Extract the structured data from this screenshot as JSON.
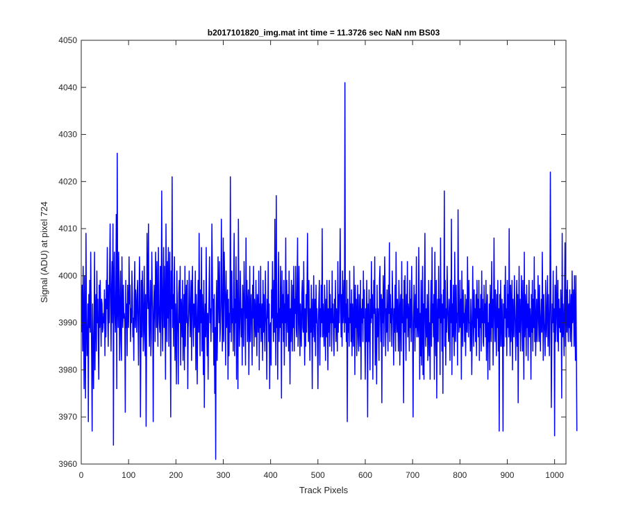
{
  "chart_data": {
    "type": "line",
    "title": "b2017101820_img.mat int time = 11.3726 sec  NaN nm BS03",
    "xlabel": "Track Pixels",
    "ylabel": "Signal (ADU) at pixel 724",
    "xlim": [
      0,
      1024
    ],
    "ylim": [
      3960,
      4050
    ],
    "xticks": [
      0,
      100,
      200,
      300,
      400,
      500,
      600,
      700,
      800,
      900,
      1000
    ],
    "yticks": [
      3960,
      3970,
      3980,
      3990,
      4000,
      4010,
      4020,
      4030,
      4040,
      4050
    ],
    "grid": false,
    "series": [
      {
        "color": "#0000ff",
        "x_start": 1,
        "x_step": 1,
        "values": [
          3988,
          3998,
          3984,
          4002,
          3990,
          3976,
          4000,
          3986,
          3974,
          4009,
          3991,
          3983,
          3985,
          3994,
          3969,
          3996,
          3989,
          3999,
          3988,
          4005,
          3993,
          3982,
          3967,
          3994,
          3985,
          3976,
          3987,
          4005,
          3980,
          3992,
          3996,
          3984,
          4001,
          3990,
          3995,
          3986,
          3978,
          3998,
          3989,
          3999,
          3992,
          3985,
          3995,
          3994,
          3988,
          3989,
          3992,
          3990,
          3997,
          3983,
          3995,
          3987,
          3999,
          3993,
          4006,
          3991,
          3985,
          3998,
          3990,
          4002,
          4011,
          3994,
          3984,
          3997,
          4003,
          3990,
          4011,
          3964,
          3999,
          4005,
          3992,
          3988,
          3996,
          4013,
          3976,
          4026,
          3994,
          3989,
          4005,
          3998,
          3982,
          3992,
          4001,
          3986,
          3982,
          4004,
          3993,
          3989,
          3998,
          3991,
          3992,
          3990,
          3971,
          3999,
          3989,
          3994,
          3983,
          3998,
          3993,
          3989,
          4004,
          3994,
          3998,
          3986,
          3993,
          3990,
          4001,
          3995,
          3987,
          3991,
          3982,
          3996,
          4003,
          3989,
          3997,
          3993,
          3988,
          3996,
          3999,
          3990,
          3981,
          3993,
          4004,
          3998,
          3970,
          3985,
          3999,
          3987,
          4001,
          3996,
          3984,
          3988,
          4002,
          3990,
          3983,
          3996,
          3968,
          3986,
          4009,
          3997,
          3993,
          4011,
          3990,
          3985,
          3994,
          3999,
          3983,
          3987,
          4005,
          3997,
          3992,
          3969,
          3990,
          3998,
          3994,
          3986,
          4005,
          3999,
          3989,
          4003,
          3991,
          3985,
          4006,
          3994,
          3990,
          3988,
          4002,
          3983,
          3996,
          4018,
          3991,
          3984,
          3997,
          4006,
          3989,
          4002,
          3992,
          3978,
          4011,
          3996,
          3986,
          4003,
          3991,
          4006,
          3985,
          3997,
          4005,
          3990,
          3970,
          4001,
          3993,
          4021,
          3989,
          3996,
          3985,
          3999,
          4004,
          3982,
          3994,
          3989,
          3977,
          4001,
          3993,
          3987,
          3977,
          3996,
          3999,
          3990,
          4002,
          3981,
          3995,
          3993,
          3987,
          3999,
          3982,
          3990,
          3996,
          3980,
          4002,
          3985,
          3994,
          3998,
          3990,
          3999,
          3976,
          3989,
          3992,
          4001,
          3995,
          3987,
          3991,
          3999,
          3982,
          3996,
          4002,
          3991,
          3985,
          3994,
          3989,
          3991,
          4001,
          3980,
          3996,
          3989,
          3977,
          3992,
          3999,
          3988,
          4009,
          3993,
          3983,
          3997,
          3990,
          4006,
          3984,
          3996,
          3990,
          3979,
          3999,
          3972,
          3990,
          3994,
          3987,
          4006,
          3991,
          3983,
          3992,
          3978,
          3989,
          3997,
          4004,
          3990,
          3993,
          3986,
          3993,
          4011,
          4001,
          3988,
          3995,
          3981,
          3996,
          3975,
          3989,
          3961,
          3993,
          3999,
          3982,
          3988,
          4004,
          3996,
          3990,
          4003,
          3986,
          3989,
          3994,
          4012,
          3998,
          3984,
          3990,
          4008,
          3986,
          4005,
          3999,
          3993,
          3981,
          4001,
          3989,
          3994,
          3997,
          3978,
          3995,
          3983,
          3992,
          3988,
          4021,
          3996,
          3986,
          4001,
          3990,
          3993,
          3984,
          3999,
          4009,
          3983,
          3995,
          3990,
          4004,
          3978,
          3999,
          3991,
          3976,
          4012,
          3996,
          3985,
          3990,
          4001,
          3994,
          3987,
          3993,
          3981,
          3998,
          3993,
          3985,
          4003,
          3996,
          3990,
          3981,
          4008,
          3991,
          3999,
          3986,
          3994,
          3997,
          3979,
          3990,
          4002,
          3986,
          3993,
          3996,
          3989,
          3981,
          3998,
          3991,
          4002,
          3985,
          3995,
          3992,
          3987,
          3999,
          3990,
          3983,
          3996,
          3993,
          3988,
          4001,
          3980,
          3994,
          3989,
          4002,
          3986,
          3991,
          3994,
          3982,
          3999,
          3988,
          3996,
          3990,
          3984,
          4001,
          3993,
          3989,
          3978,
          3995,
          3991,
          4003,
          3986,
          3994,
          3976,
          3989,
          3990,
          3981,
          3997,
          3991,
          4003,
          3993,
          3986,
          3999,
          3988,
          4012,
          3993,
          3981,
          4017,
          3989,
          3992,
          3978,
          3998,
          4005,
          3986,
          3993,
          3989,
          4002,
          3991,
          3974,
          4001,
          3990,
          3996,
          3986,
          3999,
          3981,
          3994,
          3990,
          4008,
          3985,
          3999,
          3993,
          3988,
          3996,
          3984,
          4001,
          3990,
          3977,
          3993,
          3986,
          3999,
          3991,
          3984,
          3998,
          3989,
          4002,
          3984,
          3995,
          3992,
          4002,
          3989,
          3987,
          3999,
          4008,
          3985,
          3990,
          4002,
          3991,
          3983,
          3994,
          3989,
          3985,
          3996,
          3999,
          3989,
          3988,
          4003,
          3990,
          3981,
          3993,
          3985,
          3996,
          3988,
          3998,
          4009,
          3992,
          3986,
          3999,
          3990,
          3982,
          3993,
          3988,
          3998,
          3990,
          3976,
          3995,
          3987,
          4000,
          3991,
          3986,
          3995,
          3983,
          3998,
          3990,
          3993,
          3987,
          3976,
          3990,
          3995,
          3999,
          3981,
          3993,
          3987,
          3998,
          3990,
          4010,
          3987,
          3994,
          3989,
          3985,
          3998,
          3992,
          3982,
          3995,
          3987,
          3999,
          3991,
          3980,
          3993,
          3988,
          3999,
          3985,
          3996,
          3990,
          3993,
          3984,
          4001,
          3990,
          3994,
          3987,
          3983,
          3995,
          3989,
          3999,
          3986,
          3993,
          3991,
          3984,
          4003,
          3988,
          3996,
          3990,
          3999,
          4010,
          3993,
          3987,
          3996,
          3985,
          4001,
          3990,
          3993,
          3999,
          3988,
          4041,
          3990,
          3994,
          3986,
          3999,
          3969,
          3995,
          3988,
          3991,
          3985,
          4001,
          3990,
          3994,
          3986,
          3997,
          3983,
          3994,
          3990,
          3985,
          4002,
          3993,
          3979,
          3998,
          3989,
          3995,
          3983,
          3991,
          3998,
          3987,
          3984,
          3996,
          3990,
          3985,
          3999,
          3978,
          3993,
          3990,
          3995,
          3986,
          4001,
          3991,
          3997,
          3987,
          3978,
          3993,
          3986,
          3999,
          3990,
          3970,
          3994,
          3986,
          3997,
          3988,
          3980,
          3995,
          3990,
          4003,
          3991,
          3996,
          3978,
          3989,
          3999,
          3992,
          4004,
          3981,
          3993,
          3989,
          3977,
          3998,
          3987,
          3993,
          3990,
          3982,
          3999,
          4002,
          3991,
          3986,
          3996,
          3973,
          3995,
          3990,
          4000,
          3985,
          3992,
          4004,
          3996,
          3983,
          3993,
          3988,
          3997,
          3990,
          3984,
          3998,
          3992,
          4007,
          3986,
          3996,
          3990,
          3993,
          3985,
          4001,
          3995,
          3990,
          3981,
          3993,
          3988,
          3998,
          3984,
          4005,
          3992,
          3988,
          3995,
          3990,
          3984,
          3999,
          3994,
          3981,
          3993,
          3996,
          3984,
          4003,
          3990,
          3995,
          3987,
          3973,
          3999,
          3988,
          4000,
          3990,
          3982,
          3996,
          3991,
          4003,
          3987,
          3994,
          3992,
          3984,
          3999,
          3989,
          3995,
          3986,
          4002,
          3994,
          3988,
          3970,
          3990,
          3998,
          3992,
          3984,
          3996,
          3989,
          4004,
          3987,
          3993,
          3990,
          3987,
          4006,
          3995,
          3978,
          3992,
          3983,
          3999,
          3981,
          3990,
          4002,
          3979,
          3994,
          3978,
          3996,
          4009,
          3990,
          3985,
          3993,
          3987,
          3996,
          3982,
          3988,
          3999,
          3983,
          3990,
          3978,
          3993,
          3999,
          3985,
          4006,
          3990,
          3994,
          3987,
          3996,
          3978,
          4005,
          3990,
          3983,
          3999,
          3974,
          3991,
          3995,
          3986,
          4002,
          3991,
          3995,
          3979,
          4008,
          3990,
          3996,
          3984,
          3994,
          3975,
          3997,
          3991,
          4018,
          3985,
          3999,
          3981,
          3993,
          3988,
          4002,
          3994,
          3990,
          3986,
          3995,
          3991,
          3982,
          3999,
          3990,
          4012,
          3979,
          3994,
          3987,
          3998,
          3990,
          3983,
          4005,
          3991,
          3986,
          3998,
          3990,
          3992,
          3981,
          4014,
          3996,
          3988,
          3990,
          3999,
          3989,
          3995,
          3978,
          4001,
          3993,
          3985,
          3997,
          3990,
          3992,
          3986,
          3996,
          3983,
          3991,
          3995,
          3988,
          4004,
          3993,
          3987,
          3999,
          3990,
          3990,
          3984,
          3995,
          3990,
          3979,
          3988,
          4002,
          3992,
          3985,
          3997,
          3989,
          3993,
          3986,
          3996,
          3983,
          3999,
          3991,
          3995,
          3987,
          3999,
          3982,
          3993,
          3989,
          3996,
          3984,
          4001,
          3990,
          3995,
          3986,
          3985,
          3998,
          3990,
          3994,
          3987,
          3999,
          3982,
          3992,
          3996,
          3978,
          3990,
          3986,
          3994,
          3980,
          3998,
          3991,
          3986,
          4003,
          3989,
          3995,
          3981,
          3991,
          4008,
          3993,
          3986,
          3997,
          3990,
          3983,
          3996,
          3989,
          3999,
          3984,
          3993,
          3967,
          3996,
          3985,
          3999,
          3990,
          3985,
          3995,
          3988,
          3967,
          3994,
          3985,
          3998,
          3991,
          4002,
          3987,
          3993,
          3983,
          3999,
          3989,
          3996,
          3987,
          4010,
          3990,
          3983,
          3998,
          3986,
          3993,
          3999,
          3980,
          3995,
          3990,
          3987,
          4000,
          3994,
          3988,
          3982,
          3993,
          3999,
          3985,
          3996,
          3973,
          3991,
          4002,
          3988,
          3995,
          3984,
          3990,
          4000,
          3993,
          3984,
          3999,
          3990,
          3978,
          4005,
          3987,
          3996,
          3993,
          3983,
          3998,
          3989,
          3994,
          3982,
          3991,
          3999,
          3987,
          3993,
          3990,
          3978,
          3996,
          3988,
          3999,
          3984,
          3995,
          3989,
          4004,
          3986,
          3997,
          3983,
          3990,
          3995,
          3986,
          3990,
          4000,
          3993,
          3986,
          3998,
          3990,
          3984,
          3991,
          3995,
          3988,
          4005,
          3993,
          3982,
          3996,
          3990,
          3988,
          3983,
          3999,
          3991,
          3987,
          3994,
          4000,
          3985,
          3996,
          3990,
          3983,
          3993,
          4022,
          3999,
          3972,
          3985,
          3994,
          3990,
          4001,
          3988,
          3993,
          3966,
          3998,
          3986,
          3994,
          4002,
          3990,
          3986,
          3999,
          3984,
          3995,
          3989,
          3993,
          3988,
          3997,
          3992,
          3974,
          4009,
          3987,
          3994,
          3990,
          3983,
          3996,
          4007,
          3985,
          3992,
          3997,
          3988,
          3999,
          3991,
          3986,
          3994,
          3989,
          3997,
          3986,
          3992,
          3996,
          3985,
          4001,
          3990,
          3992,
          3997,
          3985,
          4000,
          3991,
          3982,
          4000,
          3984,
          3967
        ]
      }
    ]
  }
}
